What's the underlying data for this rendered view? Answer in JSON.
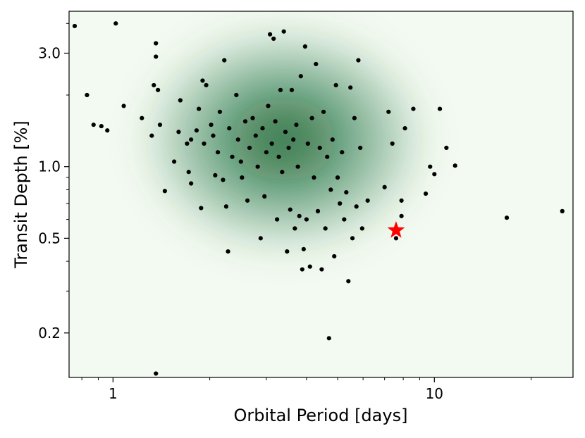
{
  "chart_data": {
    "type": "scatter",
    "xscale": "log",
    "yscale": "log",
    "xlim": [
      0.73,
      27
    ],
    "ylim": [
      0.13,
      4.5
    ],
    "xlabel": "Orbital Period [days]",
    "ylabel": "Transit Depth [%]",
    "xticks": [
      {
        "value": 1,
        "label": "1"
      },
      {
        "value": 10,
        "label": "10"
      }
    ],
    "yticks": [
      {
        "value": 0.2,
        "label": "0.2"
      },
      {
        "value": 0.5,
        "label": "0.5"
      },
      {
        "value": 1.0,
        "label": "1.0"
      },
      {
        "value": 3.0,
        "label": "3.0"
      }
    ],
    "grid": false,
    "density_background": {
      "colormap": "Greens",
      "peak": [
        3.4,
        1.3
      ]
    },
    "colors": {
      "points": "#000000",
      "highlight": "#ff0000",
      "density_dark": "#0b5e2a",
      "density_light": "#f3faf1"
    },
    "series": [
      {
        "marker": "circle",
        "color": "#000000",
        "points": [
          [
            0.76,
            3.9
          ],
          [
            1.02,
            4.0
          ],
          [
            0.83,
            2.0
          ],
          [
            0.87,
            1.5
          ],
          [
            0.92,
            1.48
          ],
          [
            0.96,
            1.42
          ],
          [
            1.08,
            1.8
          ],
          [
            1.23,
            1.6
          ],
          [
            1.32,
            1.35
          ],
          [
            1.36,
            2.9
          ],
          [
            1.36,
            3.3
          ],
          [
            1.34,
            2.2
          ],
          [
            1.38,
            2.1
          ],
          [
            1.4,
            1.5
          ],
          [
            1.45,
            0.79
          ],
          [
            1.36,
            0.135
          ],
          [
            1.55,
            1.05
          ],
          [
            1.6,
            1.4
          ],
          [
            1.62,
            1.9
          ],
          [
            1.7,
            1.25
          ],
          [
            1.72,
            0.95
          ],
          [
            1.75,
            1.3
          ],
          [
            1.75,
            0.85
          ],
          [
            1.82,
            1.42
          ],
          [
            1.85,
            1.75
          ],
          [
            1.88,
            0.67
          ],
          [
            1.92,
            1.25
          ],
          [
            1.95,
            2.2
          ],
          [
            1.9,
            2.3
          ],
          [
            2.02,
            1.5
          ],
          [
            2.05,
            1.35
          ],
          [
            2.08,
            0.92
          ],
          [
            2.12,
            1.15
          ],
          [
            2.15,
            1.7
          ],
          [
            2.2,
            0.88
          ],
          [
            2.22,
            2.8
          ],
          [
            2.25,
            0.68
          ],
          [
            2.3,
            1.45
          ],
          [
            2.35,
            1.1
          ],
          [
            2.28,
            0.44
          ],
          [
            2.42,
            2.0
          ],
          [
            2.45,
            1.3
          ],
          [
            2.5,
            1.05
          ],
          [
            2.52,
            0.9
          ],
          [
            2.58,
            1.55
          ],
          [
            2.62,
            0.72
          ],
          [
            2.66,
            1.2
          ],
          [
            2.72,
            1.6
          ],
          [
            2.78,
            1.35
          ],
          [
            2.82,
            1.0
          ],
          [
            2.88,
            0.5
          ],
          [
            2.92,
            1.45
          ],
          [
            2.96,
            0.75
          ],
          [
            3.0,
            1.15
          ],
          [
            3.04,
            1.8
          ],
          [
            3.08,
            3.6
          ],
          [
            3.12,
            1.25
          ],
          [
            3.16,
            3.45
          ],
          [
            3.2,
            1.55
          ],
          [
            3.24,
            0.6
          ],
          [
            3.28,
            1.1
          ],
          [
            3.32,
            2.1
          ],
          [
            3.36,
            0.95
          ],
          [
            3.4,
            3.7
          ],
          [
            3.44,
            1.4
          ],
          [
            3.48,
            0.44
          ],
          [
            3.52,
            1.2
          ],
          [
            3.56,
            0.66
          ],
          [
            3.6,
            2.1
          ],
          [
            3.64,
            1.3
          ],
          [
            3.68,
            0.55
          ],
          [
            3.72,
            1.5
          ],
          [
            3.76,
            1.0
          ],
          [
            3.8,
            0.62
          ],
          [
            3.84,
            2.4
          ],
          [
            3.88,
            0.37
          ],
          [
            3.92,
            0.45
          ],
          [
            3.96,
            3.2
          ],
          [
            4.0,
            0.6
          ],
          [
            4.04,
            1.25
          ],
          [
            4.1,
            0.38
          ],
          [
            4.16,
            1.6
          ],
          [
            4.22,
            0.9
          ],
          [
            4.28,
            2.7
          ],
          [
            4.34,
            0.65
          ],
          [
            4.4,
            1.2
          ],
          [
            4.46,
            0.37
          ],
          [
            4.52,
            1.7
          ],
          [
            4.58,
            0.55
          ],
          [
            4.64,
            1.1
          ],
          [
            4.7,
            0.19
          ],
          [
            4.76,
            0.8
          ],
          [
            4.82,
            1.3
          ],
          [
            4.88,
            0.42
          ],
          [
            4.94,
            2.2
          ],
          [
            5.0,
            0.9
          ],
          [
            5.08,
            0.7
          ],
          [
            5.16,
            1.15
          ],
          [
            5.24,
            0.6
          ],
          [
            5.32,
            0.78
          ],
          [
            5.4,
            0.33
          ],
          [
            5.48,
            2.15
          ],
          [
            5.56,
            0.5
          ],
          [
            5.64,
            1.6
          ],
          [
            5.72,
            0.68
          ],
          [
            5.8,
            2.8
          ],
          [
            5.88,
            1.2
          ],
          [
            5.96,
            0.55
          ],
          [
            6.2,
            0.72
          ],
          [
            7.0,
            0.82
          ],
          [
            7.2,
            1.7
          ],
          [
            7.4,
            1.25
          ],
          [
            7.6,
            0.5
          ],
          [
            7.9,
            0.62
          ],
          [
            7.9,
            0.72
          ],
          [
            8.1,
            1.45
          ],
          [
            8.6,
            1.75
          ],
          [
            9.4,
            0.77
          ],
          [
            9.7,
            1.0
          ],
          [
            10.0,
            0.93
          ],
          [
            10.4,
            1.75
          ],
          [
            10.9,
            1.2
          ],
          [
            11.6,
            1.01
          ],
          [
            16.8,
            0.61
          ],
          [
            25.0,
            0.65
          ]
        ]
      },
      {
        "marker": "star",
        "color": "#ff0000",
        "points": [
          [
            7.6,
            0.54
          ]
        ]
      }
    ]
  }
}
